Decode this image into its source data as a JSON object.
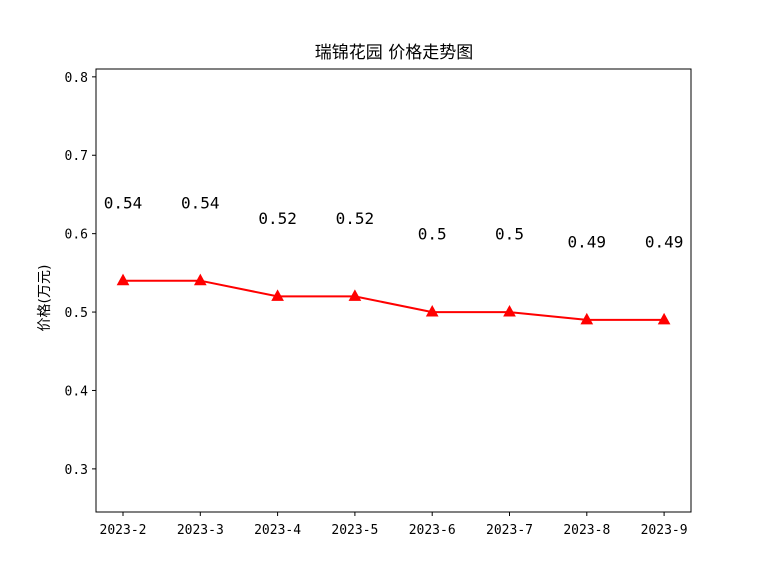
{
  "chart_data": {
    "type": "line",
    "title": "瑞锦花园 价格走势图",
    "xlabel": "",
    "ylabel": "价格(万元)",
    "categories": [
      "2023-2",
      "2023-3",
      "2023-4",
      "2023-5",
      "2023-6",
      "2023-7",
      "2023-8",
      "2023-9"
    ],
    "series": [
      {
        "values": [
          0.54,
          0.54,
          0.52,
          0.52,
          0.5,
          0.5,
          0.49,
          0.49
        ],
        "data_labels": [
          "0.54",
          "0.54",
          "0.52",
          "0.52",
          "0.5",
          "0.5",
          "0.49",
          "0.49"
        ],
        "color": "#ff0000",
        "marker": "triangle-up"
      }
    ],
    "yticks": [
      "0.3",
      "0.4",
      "0.5",
      "0.6",
      "0.7",
      "0.8"
    ],
    "ylim": [
      0.245,
      0.81
    ],
    "grid": false,
    "legend": "none"
  }
}
